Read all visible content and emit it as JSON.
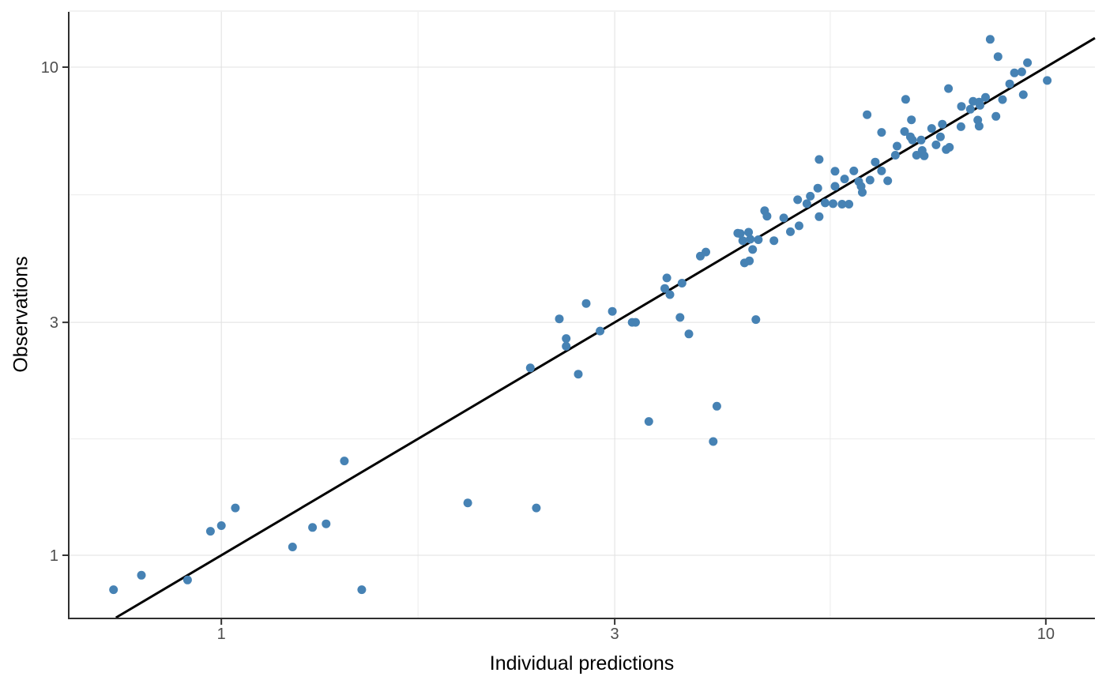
{
  "chart_data": {
    "type": "scatter",
    "title": "",
    "xlabel": "Individual predictions",
    "ylabel": "Observations",
    "x_scale": "log10",
    "y_scale": "log10",
    "xlim": [
      0.653,
      11.47
    ],
    "ylim": [
      0.745,
      12.98
    ],
    "grid": true,
    "x_ticks": [
      {
        "value": 1,
        "label": "1"
      },
      {
        "value": 3,
        "label": "3"
      },
      {
        "value": 10,
        "label": "10"
      }
    ],
    "y_ticks": [
      {
        "value": 1,
        "label": "1"
      },
      {
        "value": 3,
        "label": "3"
      },
      {
        "value": 10,
        "label": "10"
      }
    ],
    "x_minor_gridlines": [
      1.732,
      5.477
    ],
    "y_minor_gridlines": [
      1.732,
      5.477
    ],
    "identity_line": {
      "equation": "y = x",
      "color": "#000000",
      "width": 3
    },
    "series": [
      {
        "name": "observations-vs-predictions",
        "marker": "circle",
        "marker_radius": 5.5,
        "color": "#4682B4",
        "points": [
          [
            0.74,
            0.85
          ],
          [
            0.8,
            0.91
          ],
          [
            0.91,
            0.89
          ],
          [
            0.97,
            1.12
          ],
          [
            1.0,
            1.15
          ],
          [
            1.04,
            1.25
          ],
          [
            1.22,
            1.04
          ],
          [
            1.29,
            1.14
          ],
          [
            1.34,
            1.16
          ],
          [
            1.41,
            1.56
          ],
          [
            1.48,
            0.85
          ],
          [
            1.99,
            1.28
          ],
          [
            2.41,
            1.25
          ],
          [
            2.37,
            2.42
          ],
          [
            2.57,
            3.05
          ],
          [
            2.62,
            2.78
          ],
          [
            2.62,
            2.68
          ],
          [
            2.71,
            2.35
          ],
          [
            2.77,
            3.28
          ],
          [
            2.88,
            2.88
          ],
          [
            2.98,
            3.16
          ],
          [
            3.15,
            3.0
          ],
          [
            3.18,
            3.0
          ],
          [
            3.3,
            1.88
          ],
          [
            3.6,
            3.07
          ],
          [
            3.69,
            2.84
          ],
          [
            3.95,
            1.71
          ],
          [
            3.99,
            2.02
          ],
          [
            4.45,
            3.04
          ],
          [
            3.47,
            3.7
          ],
          [
            3.45,
            3.52
          ],
          [
            3.5,
            3.42
          ],
          [
            3.62,
            3.61
          ],
          [
            3.81,
            4.1
          ],
          [
            3.87,
            4.18
          ],
          [
            4.23,
            4.57
          ],
          [
            4.26,
            4.56
          ],
          [
            4.29,
            4.41
          ],
          [
            4.36,
            4.59
          ],
          [
            4.38,
            4.44
          ],
          [
            4.41,
            4.23
          ],
          [
            4.31,
            3.97
          ],
          [
            4.37,
            4.01
          ],
          [
            4.48,
            4.43
          ],
          [
            4.56,
            5.08
          ],
          [
            4.59,
            4.95
          ],
          [
            4.68,
            4.41
          ],
          [
            4.81,
            4.91
          ],
          [
            4.9,
            4.6
          ],
          [
            5.02,
            4.73
          ],
          [
            5.0,
            5.35
          ],
          [
            5.13,
            5.25
          ],
          [
            5.18,
            5.44
          ],
          [
            5.29,
            5.65
          ],
          [
            5.31,
            4.94
          ],
          [
            5.4,
            5.27
          ],
          [
            5.52,
            5.25
          ],
          [
            5.55,
            5.7
          ],
          [
            5.66,
            5.24
          ],
          [
            5.7,
            5.9
          ],
          [
            5.77,
            5.24
          ],
          [
            5.85,
            6.13
          ],
          [
            5.93,
            5.83
          ],
          [
            5.97,
            5.7
          ],
          [
            5.99,
            5.54
          ],
          [
            6.12,
            5.87
          ],
          [
            6.07,
            7.99
          ],
          [
            6.21,
            6.39
          ],
          [
            6.32,
            6.13
          ],
          [
            6.43,
            5.85
          ],
          [
            6.57,
            6.6
          ],
          [
            6.6,
            6.89
          ],
          [
            6.74,
            7.38
          ],
          [
            6.76,
            8.59
          ],
          [
            6.85,
            7.2
          ],
          [
            6.89,
            7.09
          ],
          [
            6.87,
            7.8
          ],
          [
            6.97,
            6.6
          ],
          [
            7.06,
            7.09
          ],
          [
            7.08,
            6.75
          ],
          [
            7.12,
            6.58
          ],
          [
            7.27,
            7.49
          ],
          [
            7.36,
            6.93
          ],
          [
            7.45,
            7.2
          ],
          [
            7.49,
            7.64
          ],
          [
            7.57,
            6.78
          ],
          [
            7.9,
            8.31
          ],
          [
            7.89,
            7.55
          ],
          [
            7.62,
            9.04
          ],
          [
            8.1,
            8.2
          ],
          [
            8.16,
            8.51
          ],
          [
            8.3,
            8.48
          ],
          [
            8.32,
            8.35
          ],
          [
            8.45,
            8.67
          ],
          [
            8.56,
            11.4
          ],
          [
            8.75,
            10.51
          ],
          [
            8.86,
            8.58
          ],
          [
            8.7,
            7.93
          ],
          [
            9.16,
            9.73
          ],
          [
            9.35,
            9.78
          ],
          [
            9.5,
            10.21
          ],
          [
            9.04,
            9.24
          ],
          [
            9.39,
            8.78
          ],
          [
            10.04,
            9.39
          ],
          [
            8.27,
            7.79
          ],
          [
            8.3,
            7.57
          ],
          [
            7.64,
            6.85
          ],
          [
            5.31,
            6.47
          ],
          [
            5.55,
            6.12
          ],
          [
            6.32,
            7.35
          ]
        ]
      }
    ]
  },
  "style": {
    "background": "#FFFFFF",
    "point_color": "#4682B4",
    "identity_line_color": "#000000",
    "grid_major_color": "#E0E0E0",
    "grid_minor_color": "#EBEBEB",
    "panel_top_border_color": "#E4E4E4",
    "axis_line_color": "#2F2F2F",
    "tick_mark_color": "#333333",
    "tick_label_color": "#4D4D4D",
    "axis_title_color": "#000000"
  }
}
